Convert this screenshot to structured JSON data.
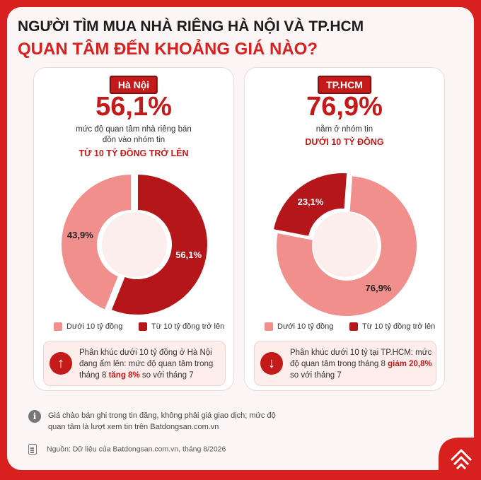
{
  "header": {
    "title_line1": "NGƯỜI TÌM MUA NHÀ RIÊNG HÀ NỘI VÀ TP.HCM",
    "title_line2": "QUAN TÂM ĐẾN KHOẢNG GIÁ NÀO?"
  },
  "hanoi": {
    "tag": "Hà Nội",
    "big_value": "56,1%",
    "desc_line1": "mức độ quan tâm nhà riêng bán",
    "desc_line2": "dồn vào nhóm tin",
    "highlight": "TỪ 10 TỶ ĐỒNG TRỞ LÊN",
    "legend_under": "Dưới 10 tỷ đồng",
    "legend_over": "Từ 10 tỷ đồng trở lên",
    "note_text": "Phân khúc dưới 10 tỷ đồng ở Hà Nội đang ấm lên: mức độ quan tâm trong tháng 8 ",
    "note_bold": "tăng 8%",
    "note_tail": " so với tháng 7",
    "arrow": "↑"
  },
  "hcm": {
    "tag": "TP.HCM",
    "big_value": "76,9%",
    "desc_line1": "nằm ở nhóm tin",
    "highlight": "DƯỚI 10 TỶ ĐỒNG",
    "legend_under": "Dưới 10 tỷ đồng",
    "legend_over": "Từ 10 tỷ đồng trở lên",
    "note_text": "Phân khúc dưới 10 tỷ tại TP.HCM: mức độ quan tâm trong tháng 8 ",
    "note_bold": "giảm 20,8%",
    "note_tail": " so với tháng 7",
    "arrow": "↓"
  },
  "footer": {
    "info_icon": "i",
    "info_text": "Giá chào bán ghi trong tin đăng, không phải giá giao dịch; mức độ quan tâm là lượt xem tin trên Batdongsan.com.vn",
    "source": "Nguồn: Dữ liệu của Batdongsan.com.vn, tháng 8/2026"
  },
  "colors": {
    "light": "#f08f8b",
    "dark": "#b5161a",
    "accent": "#d8211f"
  },
  "chart_data": [
    {
      "type": "pie",
      "categories": [
        "Dưới 10 tỷ đồng",
        "Từ 10 tỷ đồng trở lên"
      ],
      "values": [
        43.9,
        56.1
      ],
      "labels": [
        "43,9%",
        "56,1%"
      ]
    },
    {
      "type": "pie",
      "categories": [
        "Dưới 10 tỷ đồng",
        "Từ 10 tỷ đồng trở lên"
      ],
      "values": [
        76.9,
        23.1
      ],
      "labels": [
        "76,9%",
        "23,1%"
      ]
    }
  ]
}
